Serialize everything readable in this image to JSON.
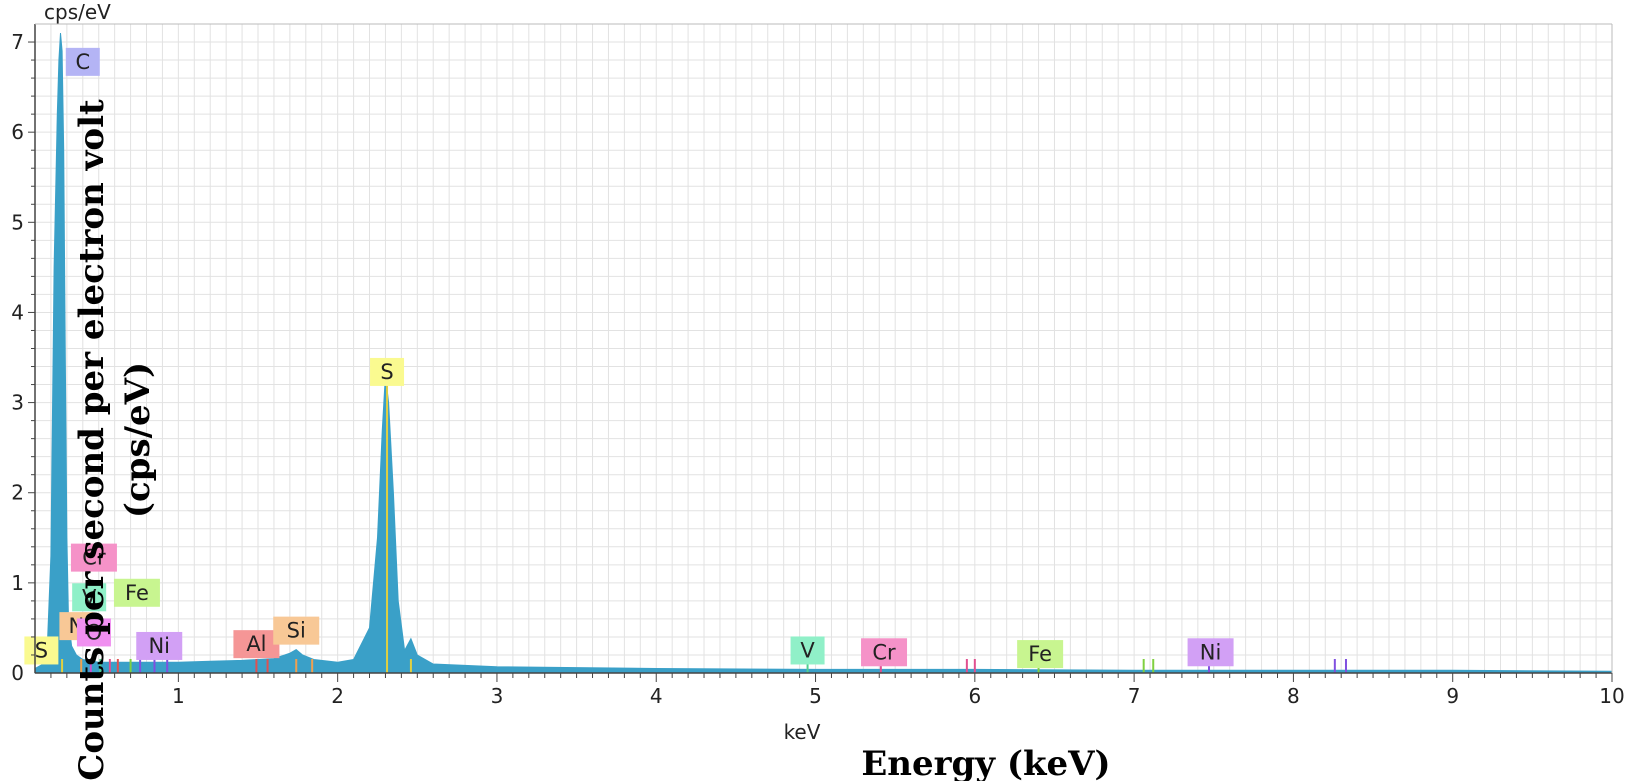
{
  "chart_data": {
    "type": "area",
    "y_unit_label": "cps/eV",
    "x_unit_label": "keV",
    "ylabel": "Counts per second per electron volt (cps/eV)",
    "xlabel": "Energy (keV)",
    "xlim": [
      0.1,
      10.0
    ],
    "ylim": [
      0,
      7.2
    ],
    "x_ticks": [
      1,
      2,
      3,
      4,
      5,
      6,
      7,
      8,
      9,
      10
    ],
    "y_ticks": [
      0,
      1,
      2,
      3,
      4,
      5,
      6,
      7
    ],
    "grid": true,
    "series": [
      {
        "color": "#3aa0c8",
        "x": [
          0.1,
          0.15,
          0.18,
          0.2,
          0.22,
          0.24,
          0.25,
          0.26,
          0.27,
          0.28,
          0.29,
          0.3,
          0.31,
          0.33,
          0.36,
          0.4,
          0.5,
          0.6,
          0.7,
          0.8,
          1.0,
          1.2,
          1.4,
          1.6,
          1.7,
          1.74,
          1.78,
          1.85,
          2.0,
          2.1,
          2.2,
          2.25,
          2.28,
          2.3,
          2.32,
          2.35,
          2.38,
          2.42,
          2.46,
          2.5,
          2.6,
          3.0,
          4.0,
          5.0,
          6.0,
          7.0,
          8.0,
          9.0,
          10.0
        ],
        "y": [
          0.05,
          0.1,
          0.4,
          1.3,
          4.5,
          6.2,
          6.8,
          7.1,
          6.9,
          5.8,
          3.5,
          1.5,
          0.6,
          0.3,
          0.2,
          0.15,
          0.12,
          0.12,
          0.12,
          0.12,
          0.12,
          0.13,
          0.14,
          0.16,
          0.22,
          0.26,
          0.2,
          0.15,
          0.12,
          0.15,
          0.5,
          1.5,
          2.7,
          3.3,
          3.0,
          2.0,
          0.8,
          0.25,
          0.38,
          0.2,
          0.1,
          0.07,
          0.05,
          0.04,
          0.04,
          0.03,
          0.03,
          0.03,
          0.02
        ]
      }
    ],
    "element_labels": [
      {
        "text": "C",
        "x": 0.4,
        "y": 6.78,
        "color": "#b4b4f5"
      },
      {
        "text": "S",
        "x": 2.31,
        "y": 3.34,
        "color": "#fafa90"
      },
      {
        "text": "Cr",
        "x": 0.47,
        "y": 1.28,
        "color": "#f592c8"
      },
      {
        "text": "V",
        "x": 0.44,
        "y": 0.84,
        "color": "#90f0c8"
      },
      {
        "text": "Fe",
        "x": 0.74,
        "y": 0.89,
        "color": "#c8f590"
      },
      {
        "text": "N",
        "x": 0.36,
        "y": 0.52,
        "color": "#f8c896"
      },
      {
        "text": "O",
        "x": 0.47,
        "y": 0.45,
        "color": "#f090f0"
      },
      {
        "text": "S",
        "x": 0.14,
        "y": 0.25,
        "color": "#fafa90"
      },
      {
        "text": "Ni",
        "x": 0.88,
        "y": 0.3,
        "color": "#d2a0f5"
      },
      {
        "text": "Al",
        "x": 1.49,
        "y": 0.32,
        "color": "#f59696"
      },
      {
        "text": "Si",
        "x": 1.74,
        "y": 0.47,
        "color": "#f8c896"
      },
      {
        "text": "V",
        "x": 4.95,
        "y": 0.25,
        "color": "#90f0c8"
      },
      {
        "text": "Cr",
        "x": 5.43,
        "y": 0.23,
        "color": "#f592c8"
      },
      {
        "text": "Fe",
        "x": 6.41,
        "y": 0.21,
        "color": "#c8f590"
      },
      {
        "text": "Ni",
        "x": 7.48,
        "y": 0.23,
        "color": "#d2a0f5"
      }
    ],
    "marker_lines": [
      {
        "x": 0.27,
        "color": "#e0d040"
      },
      {
        "x": 0.39,
        "color": "#f0a050"
      },
      {
        "x": 0.45,
        "color": "#d050d0"
      },
      {
        "x": 0.51,
        "color": "#50d090"
      },
      {
        "x": 0.57,
        "color": "#e05090"
      },
      {
        "x": 0.62,
        "color": "#e05050"
      },
      {
        "x": 0.7,
        "color": "#80d040"
      },
      {
        "x": 0.76,
        "color": "#8050e0"
      },
      {
        "x": 0.85,
        "color": "#8050e0"
      },
      {
        "x": 0.93,
        "color": "#8050e0"
      },
      {
        "x": 1.49,
        "color": "#e05050"
      },
      {
        "x": 1.56,
        "color": "#e05050"
      },
      {
        "x": 1.74,
        "color": "#f0a050"
      },
      {
        "x": 1.84,
        "color": "#f0a050"
      },
      {
        "x": 2.31,
        "color": "#e0d040"
      },
      {
        "x": 2.46,
        "color": "#e0d040"
      },
      {
        "x": 4.95,
        "color": "#50d090"
      },
      {
        "x": 5.41,
        "color": "#e05090"
      },
      {
        "x": 5.95,
        "color": "#e05090"
      },
      {
        "x": 6.0,
        "color": "#e05090"
      },
      {
        "x": 6.4,
        "color": "#80d040"
      },
      {
        "x": 7.06,
        "color": "#80d040"
      },
      {
        "x": 7.12,
        "color": "#80d040"
      },
      {
        "x": 7.47,
        "color": "#8050e0"
      },
      {
        "x": 8.26,
        "color": "#8050e0"
      },
      {
        "x": 8.33,
        "color": "#8050e0"
      }
    ]
  }
}
